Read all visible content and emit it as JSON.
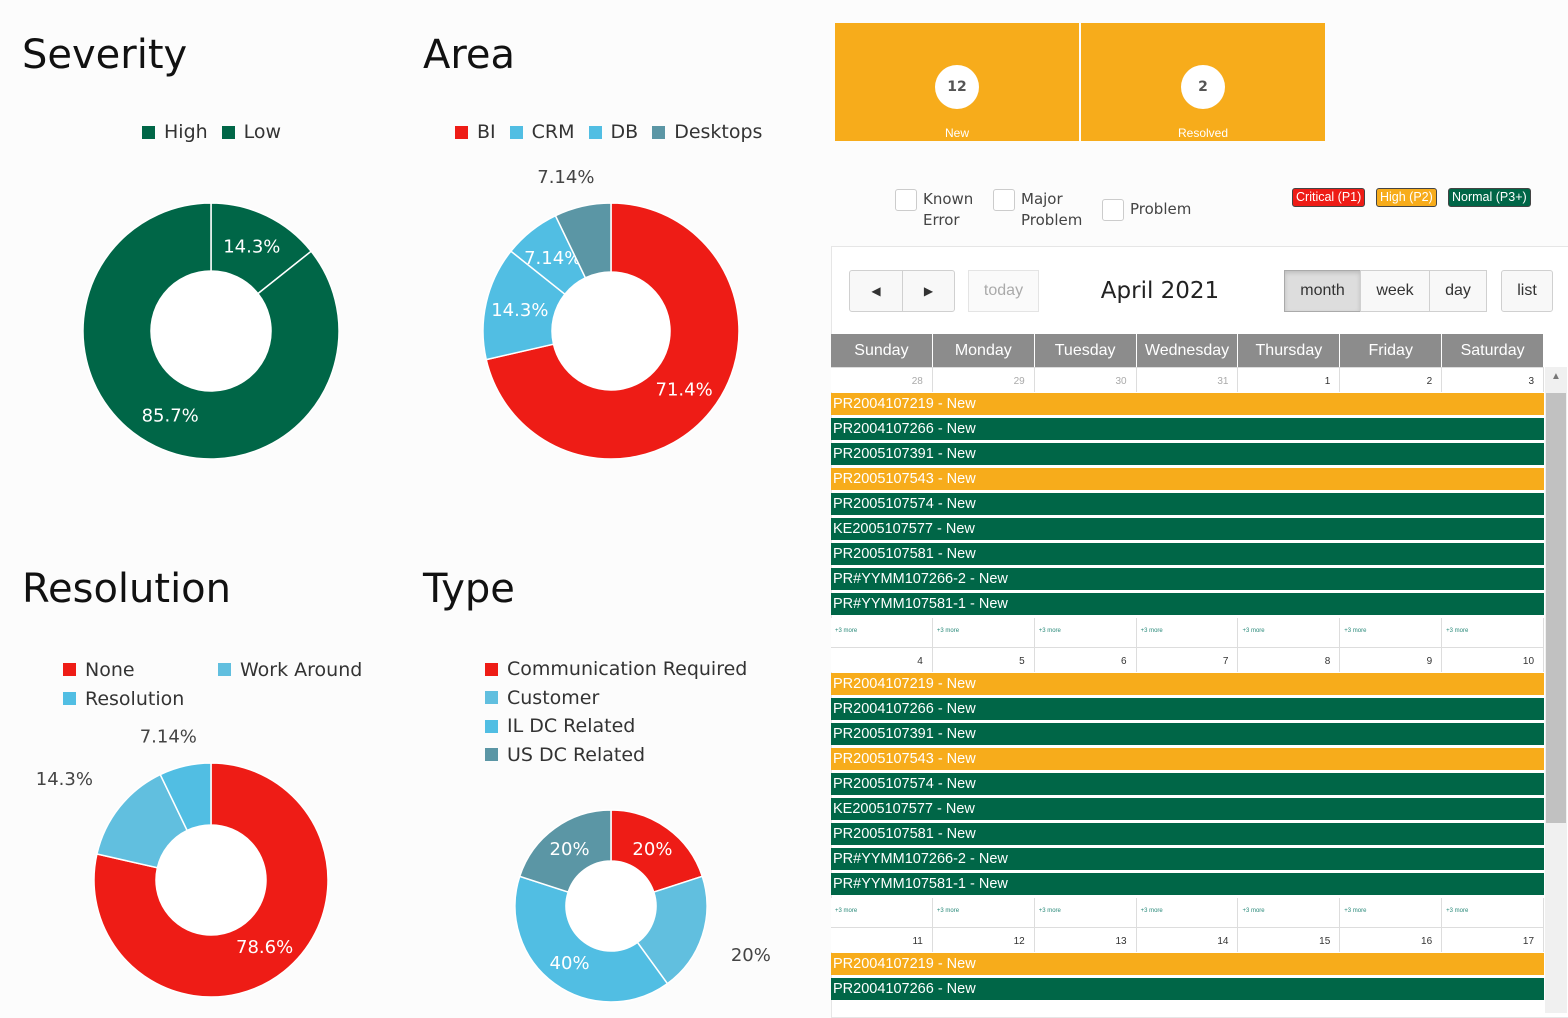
{
  "charts": {
    "severity": {
      "title": "Severity",
      "chart_data": {
        "type": "pie",
        "categories": [
          "High",
          "Low"
        ],
        "values": [
          14.3,
          85.7
        ],
        "value_labels": [
          "14.3%",
          "85.7%"
        ],
        "colors": [
          "#006647",
          "#006647"
        ],
        "legend": "top"
      }
    },
    "area": {
      "title": "Area",
      "chart_data": {
        "type": "pie",
        "categories": [
          "BI",
          "CRM",
          "DB",
          "Desktops"
        ],
        "values": [
          71.4,
          7.14,
          14.3,
          7.14
        ],
        "value_labels": [
          "71.4%",
          "7.14%",
          "14.3%",
          "7.14%"
        ],
        "colors": [
          "#ee1c16",
          "#51bee3",
          "#51bee3",
          "#5b96a5"
        ],
        "legend": "top"
      }
    },
    "resolution": {
      "title": "Resolution",
      "chart_data": {
        "type": "pie",
        "categories": [
          "None",
          "Work Around",
          "Resolution"
        ],
        "values": [
          78.6,
          14.3,
          7.14
        ],
        "value_labels": [
          "78.6%",
          "14.3%",
          "7.14%"
        ],
        "colors": [
          "#ee1c16",
          "#61bfdf",
          "#51bee3"
        ],
        "legend": "top"
      }
    },
    "type": {
      "title": "Type",
      "chart_data": {
        "type": "pie",
        "categories": [
          "Communication Required",
          "Customer",
          "IL DC Related",
          "US DC Related"
        ],
        "values": [
          20,
          20,
          40,
          20
        ],
        "value_labels": [
          "20%",
          "20%",
          "40%",
          "20%"
        ],
        "colors": [
          "#ee1c16",
          "#61bfdf",
          "#51bee3",
          "#5b96a5"
        ],
        "legend": "top"
      }
    }
  },
  "tiles": [
    {
      "count": "12",
      "label": "New"
    },
    {
      "count": "2",
      "label": "Resolved"
    }
  ],
  "filters": [
    {
      "label_1": "Known",
      "label_2": "Error"
    },
    {
      "label_1": "Major",
      "label_2": "Problem"
    },
    {
      "label_1": "Problem",
      "label_2": ""
    }
  ],
  "priorities": [
    {
      "label": "Critical (P1)",
      "color": "#ee1c16"
    },
    {
      "label": "High (P2)",
      "color": "#f7ac1b"
    },
    {
      "label": "Normal (P3+)",
      "color": "#006647"
    }
  ],
  "calendar": {
    "title": "April 2021",
    "prev_icon": "caret-left-icon",
    "next_icon": "caret-right-icon",
    "today_label": "today",
    "views": [
      "month",
      "week",
      "day"
    ],
    "active_view": "month",
    "list_label": "list",
    "weekdays": [
      "Sunday",
      "Monday",
      "Tuesday",
      "Wednesday",
      "Thursday",
      "Friday",
      "Saturday"
    ],
    "weeks": [
      {
        "dates": [
          "28",
          "29",
          "30",
          "31",
          "1",
          "2",
          "3"
        ],
        "other_month": [
          true,
          true,
          true,
          true,
          false,
          false,
          false
        ]
      },
      {
        "dates": [
          "4",
          "5",
          "6",
          "7",
          "8",
          "9",
          "10"
        ],
        "other_month": [
          false,
          false,
          false,
          false,
          false,
          false,
          false
        ]
      },
      {
        "dates": [
          "11",
          "12",
          "13",
          "14",
          "15",
          "16",
          "17"
        ],
        "other_month": [
          false,
          false,
          false,
          false,
          false,
          false,
          false
        ]
      }
    ],
    "events": [
      {
        "label": "PR2004107219 - New",
        "priority": "high"
      },
      {
        "label": "PR2004107266 - New",
        "priority": "normal"
      },
      {
        "label": "PR2005107391 - New",
        "priority": "normal"
      },
      {
        "label": "PR2005107543 - New",
        "priority": "high"
      },
      {
        "label": "PR2005107574 - New",
        "priority": "normal"
      },
      {
        "label": "KE2005107577 - New",
        "priority": "normal"
      },
      {
        "label": "PR2005107581 - New",
        "priority": "normal"
      },
      {
        "label": "PR#YYMM107266-2 - New",
        "priority": "normal"
      },
      {
        "label": "PR#YYMM107581-1 - New",
        "priority": "normal"
      }
    ],
    "more_label": "+3 more"
  }
}
